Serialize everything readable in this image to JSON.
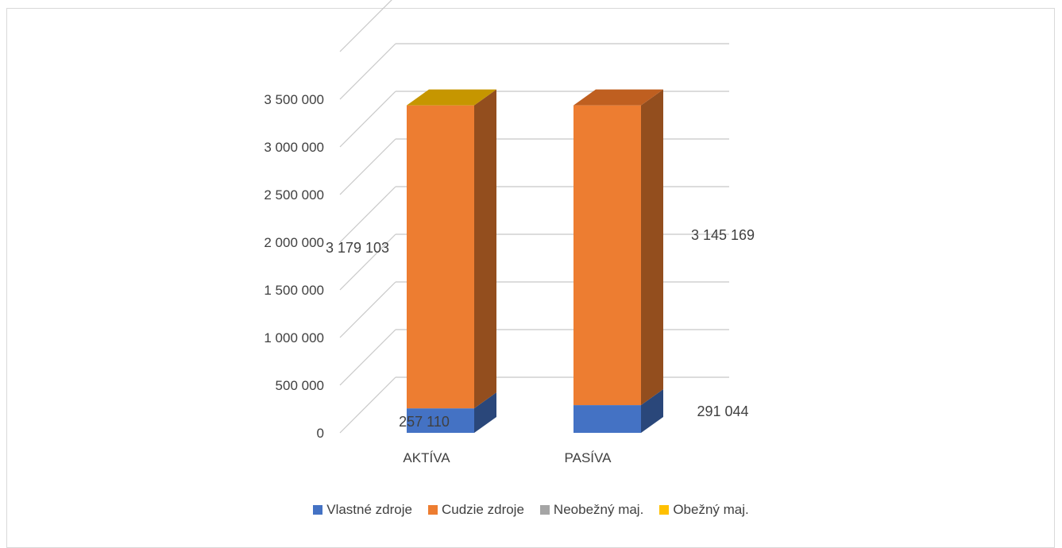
{
  "chart_data": {
    "type": "bar",
    "stacked": true,
    "three_d": true,
    "categories": [
      "AKTÍVA",
      "PASÍVA"
    ],
    "series": [
      {
        "name": "Vlastné zdroje",
        "color": "#4472c4",
        "values": [
          257110,
          291044
        ],
        "labels": [
          "257 110",
          "291 044"
        ]
      },
      {
        "name": "Cudzie zdroje",
        "color": "#ed7d31",
        "values": [
          3179103,
          3145169
        ],
        "labels": [
          "3 179 103",
          "3 145 169"
        ]
      },
      {
        "name": "Neobežný maj.",
        "color": "#a5a5a5",
        "values": [
          0,
          0
        ],
        "labels": [
          "",
          ""
        ]
      },
      {
        "name": "Obežný maj.",
        "color": "#ffc000",
        "values": [
          0,
          0
        ],
        "labels": [
          "",
          ""
        ]
      }
    ],
    "yticks": [
      {
        "value": 0,
        "label": "0"
      },
      {
        "value": 500000,
        "label": "500 000"
      },
      {
        "value": 1000000,
        "label": "1 000 000"
      },
      {
        "value": 1500000,
        "label": "1 500 000"
      },
      {
        "value": 2000000,
        "label": "2 000 000"
      },
      {
        "value": 2500000,
        "label": "2 500 000"
      },
      {
        "value": 3000000,
        "label": "3 000 000"
      },
      {
        "value": 3500000,
        "label": "3 500 000"
      }
    ],
    "ylim": [
      0,
      4000000
    ],
    "grid": true,
    "legend_position": "bottom"
  }
}
